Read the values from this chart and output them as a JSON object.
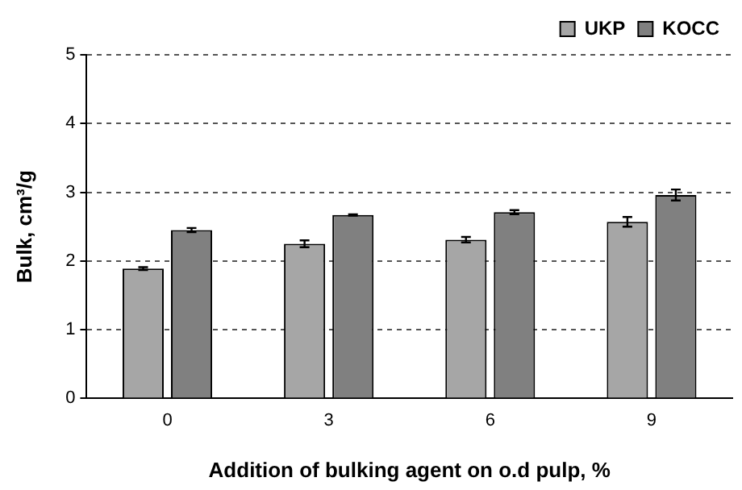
{
  "chart_data": {
    "type": "bar",
    "xlabel": "Addition of bulking agent on o.d pulp, %",
    "ylabel": "Bulk, cm³/g",
    "categories": [
      "0",
      "3",
      "6",
      "9"
    ],
    "series": [
      {
        "name": "UKP",
        "color": "#a6a6a6",
        "values": [
          1.89,
          2.25,
          2.31,
          2.57
        ],
        "errors": [
          0.02,
          0.05,
          0.04,
          0.07
        ]
      },
      {
        "name": "KOCC",
        "color": "#808080",
        "values": [
          2.45,
          2.67,
          2.71,
          2.96
        ],
        "errors": [
          0.03,
          0.01,
          0.03,
          0.08
        ]
      }
    ],
    "ylim": [
      0,
      5
    ],
    "yticks": [
      0,
      1,
      2,
      3,
      4,
      5
    ],
    "grid": "y",
    "legend": "top right"
  }
}
